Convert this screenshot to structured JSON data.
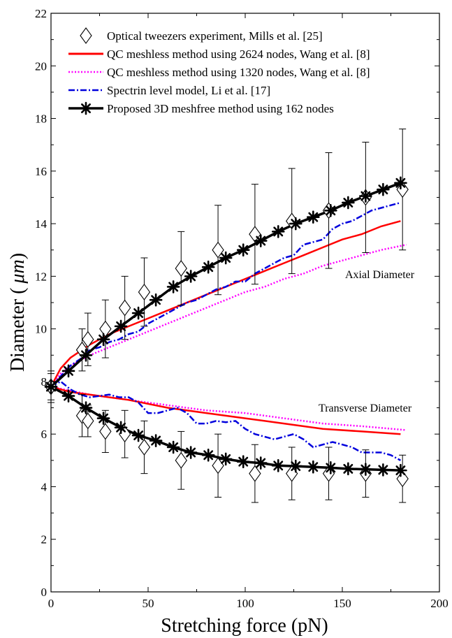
{
  "chart_data": {
    "type": "line",
    "xlabel": "Stretching force (pN)",
    "ylabel_main": "Diameter (",
    "ylabel_unit": "μm",
    "ylabel_close": ")",
    "xlim": [
      0,
      200
    ],
    "ylim": [
      0,
      22
    ],
    "xticks": [
      0,
      50,
      100,
      150,
      200
    ],
    "yticks": [
      0,
      2,
      4,
      6,
      8,
      10,
      12,
      14,
      16,
      18,
      20,
      22
    ],
    "legend_position": "top-left",
    "annotations": {
      "axial": "Axial Diameter",
      "transverse": "Transverse Diameter"
    },
    "legend": [
      {
        "label": "Optical tweezers experiment, Mills et al. [25]",
        "style": "diamond"
      },
      {
        "label": "QC meshless method using 2624 nodes, Wang et al. [8]",
        "style": "red-solid"
      },
      {
        "label": "QC meshless method using 1320 nodes, Wang et al. [8]",
        "style": "magenta-dotted"
      },
      {
        "label": "Spectrin level model, Li et al. [17]",
        "style": "blue-dashdot"
      },
      {
        "label": "Proposed 3D meshfree method using 162 nodes",
        "style": "black-asterisk"
      }
    ],
    "colors": {
      "experiment": "#000000",
      "qc2624": "#ff0000",
      "qc1320": "#ff00ff",
      "spectrin": "#0000dd",
      "proposed": "#000000"
    },
    "series": {
      "experiment_axial": {
        "x": [
          0,
          16,
          19,
          28,
          38,
          48,
          67,
          86,
          105,
          124,
          143,
          162,
          181
        ],
        "y": [
          7.8,
          9.2,
          9.6,
          10.0,
          10.8,
          11.4,
          12.3,
          13.0,
          13.6,
          14.1,
          14.5,
          15.0,
          15.3
        ],
        "err": [
          0.6,
          0.8,
          1.0,
          1.1,
          1.2,
          1.3,
          1.4,
          1.7,
          1.9,
          2.0,
          2.2,
          2.1,
          2.3
        ]
      },
      "experiment_transverse": {
        "x": [
          0,
          16,
          19,
          28,
          38,
          48,
          67,
          86,
          105,
          124,
          143,
          162,
          181
        ],
        "y": [
          7.8,
          6.7,
          6.5,
          6.1,
          6.0,
          5.5,
          5.0,
          4.8,
          4.5,
          4.5,
          4.5,
          4.5,
          4.3
        ],
        "err": [
          0.5,
          0.8,
          0.6,
          0.8,
          0.9,
          1.0,
          1.1,
          1.2,
          1.1,
          1.0,
          1.0,
          0.9,
          0.9
        ]
      },
      "qc2624_axial": {
        "x": [
          0,
          5,
          10,
          20,
          30,
          40,
          50,
          60,
          70,
          80,
          90,
          100,
          110,
          120,
          130,
          140,
          150,
          160,
          170,
          180
        ],
        "y": [
          7.8,
          8.5,
          8.9,
          9.4,
          9.8,
          10.1,
          10.4,
          10.7,
          11.0,
          11.3,
          11.6,
          11.9,
          12.2,
          12.5,
          12.8,
          13.1,
          13.4,
          13.6,
          13.9,
          14.1
        ]
      },
      "qc2624_trans": {
        "x": [
          0,
          10,
          20,
          40,
          60,
          80,
          100,
          120,
          140,
          160,
          180
        ],
        "y": [
          7.8,
          7.6,
          7.5,
          7.3,
          7.0,
          6.8,
          6.6,
          6.4,
          6.2,
          6.1,
          6.0
        ]
      },
      "qc1320_axial": {
        "x": [
          0,
          5,
          10,
          20,
          30,
          40,
          50,
          60,
          70,
          80,
          90,
          100,
          110,
          120,
          130,
          140,
          150,
          160,
          170,
          183
        ],
        "y": [
          7.8,
          8.3,
          8.6,
          9.0,
          9.3,
          9.6,
          9.9,
          10.2,
          10.5,
          10.8,
          11.1,
          11.4,
          11.6,
          11.9,
          12.1,
          12.4,
          12.6,
          12.8,
          13.0,
          13.2
        ]
      },
      "qc1320_trans": {
        "x": [
          0,
          10,
          20,
          40,
          60,
          80,
          100,
          120,
          140,
          160,
          183
        ],
        "y": [
          7.8,
          7.65,
          7.5,
          7.3,
          7.1,
          6.9,
          6.8,
          6.6,
          6.4,
          6.3,
          6.15
        ]
      },
      "spectrin_axial": {
        "x": [
          0,
          5,
          10,
          16,
          20,
          25,
          30,
          35,
          40,
          45,
          50,
          55,
          60,
          65,
          70,
          75,
          80,
          85,
          90,
          95,
          100,
          105,
          110,
          115,
          120,
          125,
          130,
          135,
          140,
          145,
          150,
          155,
          160,
          165,
          170,
          175,
          180
        ],
        "y": [
          7.8,
          8.2,
          8.6,
          8.9,
          9.2,
          9.3,
          9.5,
          9.6,
          9.8,
          9.9,
          10.2,
          10.4,
          10.6,
          10.8,
          11.0,
          11.1,
          11.3,
          11.5,
          11.6,
          11.8,
          11.8,
          12.1,
          12.3,
          12.5,
          12.7,
          12.8,
          13.2,
          13.3,
          13.4,
          13.8,
          14.0,
          14.1,
          14.3,
          14.5,
          14.6,
          14.7,
          14.8
        ]
      },
      "spectrin_trans": {
        "x": [
          0,
          5,
          10,
          15,
          20,
          25,
          30,
          35,
          40,
          45,
          50,
          55,
          60,
          65,
          70,
          75,
          80,
          85,
          90,
          95,
          100,
          105,
          110,
          115,
          120,
          125,
          130,
          135,
          140,
          145,
          150,
          155,
          160,
          165,
          170,
          175,
          180
        ],
        "y": [
          7.8,
          8.0,
          7.7,
          7.5,
          7.4,
          7.45,
          7.5,
          7.4,
          7.4,
          7.2,
          6.8,
          6.8,
          6.9,
          7.0,
          6.8,
          6.4,
          6.4,
          6.5,
          6.45,
          6.5,
          6.2,
          6.0,
          5.9,
          5.8,
          5.9,
          6.0,
          5.8,
          5.5,
          5.6,
          5.7,
          5.6,
          5.5,
          5.3,
          5.3,
          5.3,
          5.2,
          5.0
        ]
      },
      "proposed_axial": {
        "x": [
          0,
          9,
          18,
          27,
          36,
          45,
          54,
          63,
          72,
          81,
          90,
          99,
          108,
          117,
          126,
          135,
          144,
          153,
          162,
          171,
          180
        ],
        "y": [
          7.8,
          8.4,
          9.0,
          9.6,
          10.1,
          10.6,
          11.1,
          11.6,
          12.0,
          12.35,
          12.7,
          13.0,
          13.35,
          13.7,
          14.0,
          14.25,
          14.5,
          14.8,
          15.05,
          15.3,
          15.55
        ]
      },
      "proposed_trans": {
        "x": [
          0,
          9,
          18,
          27,
          36,
          45,
          54,
          63,
          72,
          81,
          90,
          99,
          108,
          117,
          126,
          135,
          144,
          153,
          162,
          171,
          180
        ],
        "y": [
          7.8,
          7.45,
          7.0,
          6.6,
          6.25,
          5.95,
          5.75,
          5.5,
          5.3,
          5.2,
          5.05,
          4.95,
          4.9,
          4.8,
          4.78,
          4.75,
          4.72,
          4.68,
          4.66,
          4.64,
          4.62
        ]
      }
    }
  }
}
